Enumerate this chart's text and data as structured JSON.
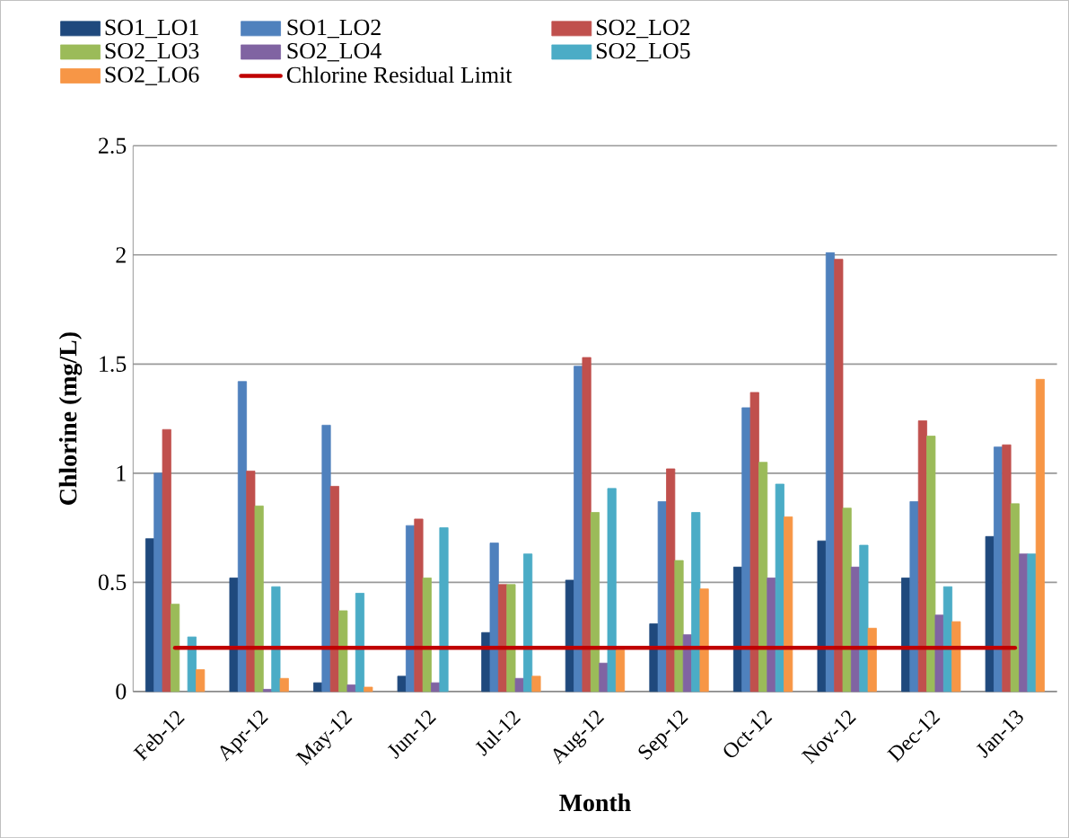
{
  "chart_data": {
    "type": "bar",
    "xlabel": "Month",
    "ylabel": "Chlorine (mg/L)",
    "categories": [
      "Feb-12",
      "Apr-12",
      "May-12",
      "Jun-12",
      "Jul-12",
      "Aug-12",
      "Sep-12",
      "Oct-12",
      "Nov-12",
      "Dec-12",
      "Jan-13"
    ],
    "series": [
      {
        "name": "SO1_LO1",
        "color": "#1f497d",
        "values": [
          0.7,
          0.52,
          0.04,
          0.07,
          0.27,
          0.51,
          0.31,
          0.57,
          0.69,
          0.52,
          0.71
        ]
      },
      {
        "name": "SO1_LO2",
        "color": "#4f81bd",
        "values": [
          1.0,
          1.42,
          1.22,
          0.76,
          0.68,
          1.49,
          0.87,
          1.3,
          2.01,
          0.87,
          1.12
        ]
      },
      {
        "name": "SO2_LO2",
        "color": "#c0504d",
        "values": [
          1.2,
          1.01,
          0.94,
          0.79,
          0.49,
          1.53,
          1.02,
          1.37,
          1.98,
          1.24,
          1.13
        ]
      },
      {
        "name": "SO2_LO3",
        "color": "#9bbb59",
        "values": [
          0.4,
          0.85,
          0.37,
          0.52,
          0.49,
          0.82,
          0.6,
          1.05,
          0.84,
          1.17,
          0.86
        ]
      },
      {
        "name": "SO2_LO4",
        "color": "#8064a2",
        "values": [
          null,
          0.01,
          0.03,
          0.04,
          0.06,
          0.13,
          0.26,
          0.52,
          0.57,
          0.35,
          0.63
        ]
      },
      {
        "name": "SO2_LO5",
        "color": "#4bacc6",
        "values": [
          0.25,
          0.48,
          0.45,
          0.75,
          0.63,
          0.93,
          0.82,
          0.95,
          0.67,
          0.48,
          0.63
        ]
      },
      {
        "name": "SO2_LO6",
        "color": "#f79646",
        "values": [
          0.1,
          0.06,
          0.02,
          null,
          0.07,
          0.19,
          0.47,
          0.8,
          0.29,
          0.32,
          1.43
        ]
      }
    ],
    "ref_lines": [
      {
        "axis": "y",
        "value": 0.2,
        "label": "Chlorine Residual Limit",
        "color": "#c00000"
      }
    ],
    "ylim": [
      0,
      2.5
    ],
    "yticks": [
      0,
      0.5,
      1,
      1.5,
      2,
      2.5
    ],
    "grid": "y",
    "legend": "top"
  }
}
